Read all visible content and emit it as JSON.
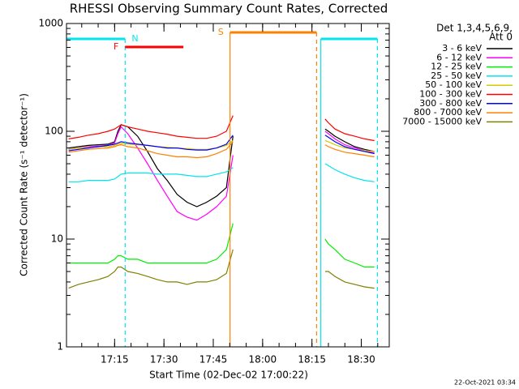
{
  "chart_data": {
    "type": "line",
    "title": "RHESSI Observing Summary Count Rates, Corrected",
    "x_label": "Start Time (02-Dec-02 17:00:22)",
    "y_label": "Corrected Count Rate (s⁻¹ detector⁻¹)",
    "legend_header": [
      "Det 1,3,4,5,6,9,",
      "Att 0"
    ],
    "legend_position": "right",
    "footer": "22-Oct-2021 03:34",
    "y_log": true,
    "xlim": [
      0.37,
      98.5
    ],
    "ylim": [
      1,
      1000
    ],
    "yticks": [
      1,
      10,
      100,
      1000
    ],
    "xticks": [
      {
        "value": 15,
        "label": "17:15"
      },
      {
        "value": 30,
        "label": "17:30"
      },
      {
        "value": 45,
        "label": "17:45"
      },
      {
        "value": 60,
        "label": "18:00"
      },
      {
        "value": 75,
        "label": "18:15"
      },
      {
        "value": 90,
        "label": "18:30"
      }
    ],
    "flags": [
      {
        "label": "N",
        "color": "#00e5ee",
        "markers": true,
        "segments": [
          [
            0.37,
            18.2
          ],
          [
            77.7,
            94.9
          ]
        ]
      },
      {
        "label": "F",
        "color": "#ff0000",
        "markers": false,
        "segments": [
          [
            18.2,
            35.9
          ]
        ]
      },
      {
        "label": "S",
        "color": "#ff8000",
        "markers": true,
        "segments": [
          [
            50.1,
            76.4
          ]
        ]
      }
    ],
    "x": [
      1,
      4,
      7,
      10,
      13,
      15,
      16,
      17,
      19,
      22,
      25,
      28,
      31,
      34,
      37,
      40,
      43,
      46,
      49,
      51,
      60,
      79,
      80,
      82,
      85,
      88,
      91,
      94
    ],
    "series": [
      {
        "name": "3 - 6 keV",
        "color": "#000000",
        "values": [
          70,
          72,
          74,
          75,
          76,
          80,
          100,
          115,
          110,
          90,
          65,
          45,
          35,
          26,
          22,
          20,
          22,
          25,
          30,
          90,
          null,
          105,
          100,
          90,
          80,
          72,
          68,
          65
        ]
      },
      {
        "name": "6 - 12 keV",
        "color": "#ff00ff",
        "values": [
          68,
          70,
          72,
          73,
          74,
          78,
          95,
          110,
          95,
          70,
          50,
          35,
          25,
          18,
          16,
          15,
          17,
          20,
          25,
          60,
          null,
          100,
          95,
          85,
          75,
          70,
          66,
          63
        ]
      },
      {
        "name": "12 - 25 keV",
        "color": "#00ee00",
        "values": [
          6,
          6,
          6,
          6,
          6,
          6.5,
          7,
          7,
          6.5,
          6.5,
          6,
          6,
          6,
          6,
          6,
          6,
          6,
          6.5,
          8,
          14,
          null,
          10,
          9,
          8,
          6.5,
          6,
          5.5,
          5.5
        ]
      },
      {
        "name": "25 - 50 keV",
        "color": "#00e5ee",
        "values": [
          34,
          34,
          35,
          35,
          35,
          36,
          38,
          40,
          41,
          41,
          41,
          40,
          40,
          40,
          39,
          38,
          38,
          40,
          42,
          46,
          null,
          50,
          48,
          44,
          40,
          37,
          35,
          34
        ]
      },
      {
        "name": "50 - 100 keV",
        "color": "#d8c800",
        "values": [
          68,
          70,
          71,
          72,
          72,
          74,
          76,
          77,
          76,
          75,
          74,
          72,
          71,
          70,
          69,
          68,
          68,
          70,
          74,
          82,
          null,
          82,
          80,
          75,
          70,
          68,
          66,
          65
        ]
      },
      {
        "name": "100 - 300 keV",
        "color": "#ff0000",
        "values": [
          85,
          88,
          92,
          95,
          100,
          105,
          110,
          115,
          110,
          105,
          100,
          97,
          94,
          90,
          88,
          86,
          86,
          90,
          100,
          140,
          null,
          130,
          120,
          105,
          95,
          90,
          85,
          82
        ]
      },
      {
        "name": "300 - 800 keV",
        "color": "#0000ff",
        "values": [
          66,
          68,
          70,
          72,
          74,
          76,
          78,
          80,
          78,
          76,
          74,
          72,
          70,
          70,
          68,
          67,
          67,
          70,
          76,
          92,
          null,
          92,
          88,
          80,
          72,
          68,
          65,
          62
        ]
      },
      {
        "name": "800 - 7000 keV",
        "color": "#ff8000",
        "values": [
          64,
          66,
          68,
          69,
          70,
          72,
          74,
          75,
          72,
          70,
          66,
          62,
          60,
          58,
          58,
          57,
          58,
          62,
          68,
          80,
          null,
          75,
          72,
          68,
          64,
          62,
          60,
          58
        ]
      },
      {
        "name": "7000 - 15000 keV",
        "color": "#808000",
        "values": [
          3.5,
          3.8,
          4,
          4.2,
          4.5,
          5,
          5.5,
          5.5,
          5,
          4.8,
          4.5,
          4.2,
          4,
          4,
          3.8,
          4,
          4,
          4.2,
          4.8,
          8,
          null,
          5,
          5,
          4.5,
          4,
          3.8,
          3.6,
          3.5
        ]
      }
    ]
  }
}
